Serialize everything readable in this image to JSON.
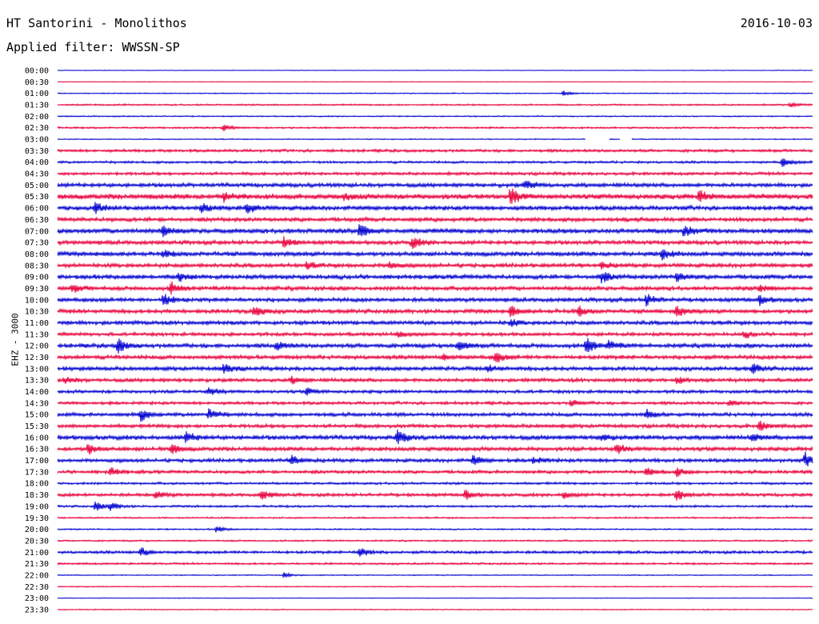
{
  "header": {
    "title": "HT Santorini - Monolithos",
    "date": "2016-10-03",
    "filter": "Applied filter: WWSSN-SP"
  },
  "chart_data": {
    "type": "line",
    "title": "HT Santorini - Monolithos",
    "ylabel": "EHZ - 3000",
    "xlabel": "",
    "colors": [
      "#0000d0",
      "#e8003c"
    ],
    "rows": [
      "00:00",
      "00:30",
      "01:00",
      "01:30",
      "02:00",
      "02:30",
      "03:00",
      "03:30",
      "04:00",
      "04:30",
      "05:00",
      "05:30",
      "06:00",
      "06:30",
      "07:00",
      "07:30",
      "08:00",
      "08:30",
      "09:00",
      "09:30",
      "10:00",
      "10:30",
      "11:00",
      "11:30",
      "12:00",
      "12:30",
      "13:00",
      "13:30",
      "14:00",
      "14:30",
      "15:00",
      "15:30",
      "16:00",
      "16:30",
      "17:00",
      "17:30",
      "18:00",
      "18:30",
      "19:00",
      "19:30",
      "20:00",
      "20:30",
      "21:00",
      "21:30",
      "22:00",
      "22:30",
      "23:00",
      "23:30"
    ],
    "noise_level": [
      0.3,
      0.3,
      0.5,
      0.8,
      0.6,
      0.9,
      0.5,
      1.4,
      1.2,
      1.5,
      2.0,
      2.6,
      2.2,
      2.0,
      2.4,
      2.0,
      2.2,
      2.0,
      2.2,
      2.0,
      2.0,
      2.0,
      2.0,
      1.7,
      2.1,
      2.0,
      2.0,
      1.8,
      1.6,
      1.5,
      1.8,
      1.8,
      2.2,
      2.0,
      1.8,
      1.6,
      1.2,
      1.6,
      1.1,
      0.8,
      0.7,
      0.8,
      1.4,
      1.0,
      0.5,
      0.5,
      0.3,
      0.5
    ],
    "events": [
      {
        "row": 2,
        "pos": 0.67,
        "amp": 3
      },
      {
        "row": 3,
        "pos": 0.97,
        "amp": 3
      },
      {
        "row": 5,
        "pos": 0.22,
        "amp": 4
      },
      {
        "row": 8,
        "pos": 0.96,
        "amp": 5
      },
      {
        "row": 10,
        "pos": 0.62,
        "amp": 6
      },
      {
        "row": 11,
        "pos": 0.22,
        "amp": 6
      },
      {
        "row": 11,
        "pos": 0.6,
        "amp": 11
      },
      {
        "row": 11,
        "pos": 0.85,
        "amp": 8
      },
      {
        "row": 11,
        "pos": 0.38,
        "amp": 4
      },
      {
        "row": 12,
        "pos": 0.05,
        "amp": 6
      },
      {
        "row": 12,
        "pos": 0.25,
        "amp": 7
      },
      {
        "row": 12,
        "pos": 0.19,
        "amp": 5
      },
      {
        "row": 14,
        "pos": 0.14,
        "amp": 6
      },
      {
        "row": 14,
        "pos": 0.4,
        "amp": 8
      },
      {
        "row": 14,
        "pos": 0.83,
        "amp": 7
      },
      {
        "row": 15,
        "pos": 0.3,
        "amp": 6
      },
      {
        "row": 15,
        "pos": 0.47,
        "amp": 7
      },
      {
        "row": 16,
        "pos": 0.8,
        "amp": 7
      },
      {
        "row": 16,
        "pos": 0.14,
        "amp": 4
      },
      {
        "row": 17,
        "pos": 0.33,
        "amp": 4
      },
      {
        "row": 17,
        "pos": 0.44,
        "amp": 4
      },
      {
        "row": 17,
        "pos": 0.72,
        "amp": 4
      },
      {
        "row": 18,
        "pos": 0.72,
        "amp": 7
      },
      {
        "row": 18,
        "pos": 0.82,
        "amp": 6
      },
      {
        "row": 18,
        "pos": 0.16,
        "amp": 5
      },
      {
        "row": 19,
        "pos": 0.02,
        "amp": 5
      },
      {
        "row": 19,
        "pos": 0.15,
        "amp": 7
      },
      {
        "row": 19,
        "pos": 0.93,
        "amp": 4
      },
      {
        "row": 20,
        "pos": 0.14,
        "amp": 8
      },
      {
        "row": 20,
        "pos": 0.78,
        "amp": 7
      },
      {
        "row": 20,
        "pos": 0.93,
        "amp": 6
      },
      {
        "row": 21,
        "pos": 0.26,
        "amp": 8
      },
      {
        "row": 21,
        "pos": 0.6,
        "amp": 7
      },
      {
        "row": 21,
        "pos": 0.69,
        "amp": 6
      },
      {
        "row": 21,
        "pos": 0.82,
        "amp": 7
      },
      {
        "row": 22,
        "pos": 0.6,
        "amp": 4
      },
      {
        "row": 23,
        "pos": 0.45,
        "amp": 4
      },
      {
        "row": 23,
        "pos": 0.91,
        "amp": 4
      },
      {
        "row": 24,
        "pos": 0.08,
        "amp": 9
      },
      {
        "row": 24,
        "pos": 0.29,
        "amp": 5
      },
      {
        "row": 24,
        "pos": 0.53,
        "amp": 7
      },
      {
        "row": 24,
        "pos": 0.7,
        "amp": 10
      },
      {
        "row": 24,
        "pos": 0.73,
        "amp": 6
      },
      {
        "row": 25,
        "pos": 0.58,
        "amp": 7
      },
      {
        "row": 25,
        "pos": 0.51,
        "amp": 4
      },
      {
        "row": 26,
        "pos": 0.22,
        "amp": 6
      },
      {
        "row": 26,
        "pos": 0.57,
        "amp": 4
      },
      {
        "row": 26,
        "pos": 0.92,
        "amp": 6
      },
      {
        "row": 27,
        "pos": 0.01,
        "amp": 4
      },
      {
        "row": 27,
        "pos": 0.31,
        "amp": 4
      },
      {
        "row": 27,
        "pos": 0.82,
        "amp": 5
      },
      {
        "row": 28,
        "pos": 0.2,
        "amp": 5
      },
      {
        "row": 28,
        "pos": 0.33,
        "amp": 4
      },
      {
        "row": 29,
        "pos": 0.68,
        "amp": 4
      },
      {
        "row": 29,
        "pos": 0.89,
        "amp": 4
      },
      {
        "row": 30,
        "pos": 0.11,
        "amp": 8
      },
      {
        "row": 30,
        "pos": 0.2,
        "amp": 7
      },
      {
        "row": 30,
        "pos": 0.78,
        "amp": 6
      },
      {
        "row": 31,
        "pos": 0.93,
        "amp": 6
      },
      {
        "row": 32,
        "pos": 0.17,
        "amp": 7
      },
      {
        "row": 32,
        "pos": 0.45,
        "amp": 9
      },
      {
        "row": 32,
        "pos": 0.72,
        "amp": 4
      },
      {
        "row": 32,
        "pos": 0.92,
        "amp": 4
      },
      {
        "row": 33,
        "pos": 0.04,
        "amp": 7
      },
      {
        "row": 33,
        "pos": 0.15,
        "amp": 6
      },
      {
        "row": 33,
        "pos": 0.74,
        "amp": 7
      },
      {
        "row": 34,
        "pos": 0.31,
        "amp": 6
      },
      {
        "row": 34,
        "pos": 0.55,
        "amp": 6
      },
      {
        "row": 34,
        "pos": 0.63,
        "amp": 5
      },
      {
        "row": 34,
        "pos": 0.99,
        "amp": 9
      },
      {
        "row": 35,
        "pos": 0.07,
        "amp": 5
      },
      {
        "row": 35,
        "pos": 0.78,
        "amp": 5
      },
      {
        "row": 35,
        "pos": 0.82,
        "amp": 5
      },
      {
        "row": 37,
        "pos": 0.13,
        "amp": 5
      },
      {
        "row": 37,
        "pos": 0.27,
        "amp": 6
      },
      {
        "row": 37,
        "pos": 0.54,
        "amp": 6
      },
      {
        "row": 37,
        "pos": 0.67,
        "amp": 5
      },
      {
        "row": 37,
        "pos": 0.82,
        "amp": 7
      },
      {
        "row": 38,
        "pos": 0.05,
        "amp": 6
      },
      {
        "row": 38,
        "pos": 0.07,
        "amp": 5
      },
      {
        "row": 40,
        "pos": 0.21,
        "amp": 4
      },
      {
        "row": 42,
        "pos": 0.11,
        "amp": 6
      },
      {
        "row": 42,
        "pos": 0.4,
        "amp": 7
      },
      {
        "row": 44,
        "pos": 0.3,
        "amp": 3
      }
    ],
    "gaps": [
      {
        "row": 6,
        "start": 0.7,
        "end": 0.73
      },
      {
        "row": 6,
        "start": 0.745,
        "end": 0.76
      }
    ]
  }
}
